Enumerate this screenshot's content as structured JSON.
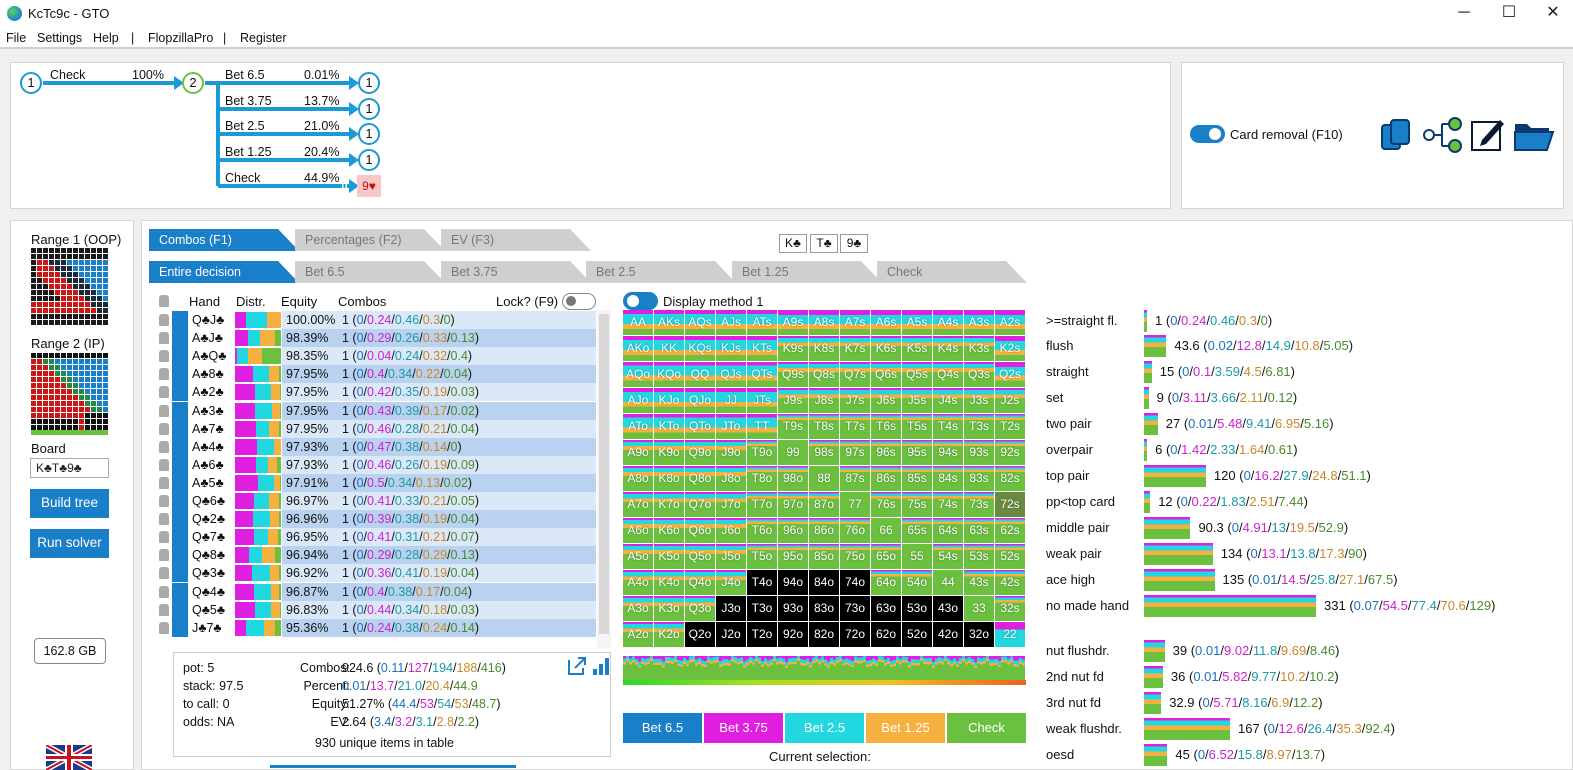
{
  "window": {
    "title": "KcTc9c - GTO",
    "minimize": "─",
    "maximize": "☐",
    "close": "✕"
  },
  "menu": [
    "File",
    "Settings",
    "Help",
    "|",
    "FlopzillaPro",
    "|",
    "Register"
  ],
  "tree": {
    "root_node": "1",
    "root_action": "Check",
    "root_pct": "100%",
    "mid_node": "2",
    "branches": [
      {
        "label": "Bet 6.5",
        "pct": "0.01%",
        "node": "1"
      },
      {
        "label": "Bet 3.75",
        "pct": "13.7%",
        "node": "1"
      },
      {
        "label": "Bet 2.5",
        "pct": "21.0%",
        "node": "1"
      },
      {
        "label": "Bet 1.25",
        "pct": "20.4%",
        "node": "1"
      },
      {
        "label": "Check",
        "pct": "44.9%",
        "node": "9♥"
      }
    ]
  },
  "options": {
    "card_removal": "Card removal (F10)"
  },
  "left": {
    "range1": "Range 1 (OOP)",
    "range2": "Range 2 (IP)",
    "board_label": "Board",
    "board_value": "K♣T♣9♣",
    "build_tree": "Build tree",
    "run_solver": "Run solver",
    "memory": "162.8 GB"
  },
  "tabs1": [
    "Combos (F1)",
    "Percentages (F2)",
    "EV (F3)"
  ],
  "board_cards": [
    "K♣",
    "T♣",
    "9♣"
  ],
  "tabs2": [
    "Entire decision",
    "Bet 6.5",
    "Bet 3.75",
    "Bet 2.5",
    "Bet 1.25",
    "Check"
  ],
  "table": {
    "headers": {
      "hand": "Hand",
      "distr": "Distr.",
      "equity": "Equity",
      "combos": "Combos",
      "lock": "Lock? (F9)"
    },
    "rows": [
      {
        "hand": "Q♣J♣",
        "eq": "100.00%",
        "c": "1",
        "a": "0",
        "b": "0.24",
        "d": "0.46",
        "e": "0.3",
        "f": "0"
      },
      {
        "hand": "A♣J♣",
        "eq": "98.39%",
        "c": "1",
        "a": "0",
        "b": "0.29",
        "d": "0.26",
        "e": "0.33",
        "f": "0.13"
      },
      {
        "hand": "A♣Q♣",
        "eq": "98.35%",
        "c": "1",
        "a": "0",
        "b": "0.04",
        "d": "0.24",
        "e": "0.32",
        "f": "0.4"
      },
      {
        "hand": "A♣8♣",
        "eq": "97.95%",
        "c": "1",
        "a": "0",
        "b": "0.4",
        "d": "0.34",
        "e": "0.22",
        "f": "0.04"
      },
      {
        "hand": "A♣2♣",
        "eq": "97.95%",
        "c": "1",
        "a": "0",
        "b": "0.42",
        "d": "0.35",
        "e": "0.19",
        "f": "0.03"
      },
      {
        "hand": "A♣3♣",
        "eq": "97.95%",
        "c": "1",
        "a": "0",
        "b": "0.43",
        "d": "0.39",
        "e": "0.17",
        "f": "0.02"
      },
      {
        "hand": "A♣7♣",
        "eq": "97.95%",
        "c": "1",
        "a": "0",
        "b": "0.46",
        "d": "0.28",
        "e": "0.21",
        "f": "0.04"
      },
      {
        "hand": "A♣4♣",
        "eq": "97.93%",
        "c": "1",
        "a": "0",
        "b": "0.47",
        "d": "0.38",
        "e": "0.14",
        "f": "0"
      },
      {
        "hand": "A♣6♣",
        "eq": "97.93%",
        "c": "1",
        "a": "0",
        "b": "0.46",
        "d": "0.26",
        "e": "0.19",
        "f": "0.09"
      },
      {
        "hand": "A♣5♣",
        "eq": "97.91%",
        "c": "1",
        "a": "0",
        "b": "0.5",
        "d": "0.34",
        "e": "0.13",
        "f": "0.02"
      },
      {
        "hand": "Q♣6♣",
        "eq": "96.97%",
        "c": "1",
        "a": "0",
        "b": "0.41",
        "d": "0.33",
        "e": "0.21",
        "f": "0.05"
      },
      {
        "hand": "Q♣2♣",
        "eq": "96.96%",
        "c": "1",
        "a": "0",
        "b": "0.39",
        "d": "0.38",
        "e": "0.19",
        "f": "0.04"
      },
      {
        "hand": "Q♣7♣",
        "eq": "96.95%",
        "c": "1",
        "a": "0",
        "b": "0.41",
        "d": "0.31",
        "e": "0.21",
        "f": "0.07"
      },
      {
        "hand": "Q♣8♣",
        "eq": "96.94%",
        "c": "1",
        "a": "0",
        "b": "0.29",
        "d": "0.28",
        "e": "0.29",
        "f": "0.13"
      },
      {
        "hand": "Q♣3♣",
        "eq": "96.92%",
        "c": "1",
        "a": "0",
        "b": "0.36",
        "d": "0.41",
        "e": "0.19",
        "f": "0.04"
      },
      {
        "hand": "Q♣4♣",
        "eq": "96.87%",
        "c": "1",
        "a": "0",
        "b": "0.4",
        "d": "0.38",
        "e": "0.17",
        "f": "0.04"
      },
      {
        "hand": "Q♣5♣",
        "eq": "96.83%",
        "c": "1",
        "a": "0",
        "b": "0.44",
        "d": "0.34",
        "e": "0.18",
        "f": "0.03"
      },
      {
        "hand": "J♣7♣",
        "eq": "95.36%",
        "c": "1",
        "a": "0",
        "b": "0.24",
        "d": "0.38",
        "e": "0.24",
        "f": "0.14"
      }
    ]
  },
  "summary": {
    "pot": "pot: 5",
    "stack": "stack: 97.5",
    "tocall": "to call: 0",
    "odds": "odds: NA",
    "combos_label": "Combos:",
    "combos": [
      "924.6",
      "0.11",
      "127",
      "194",
      "188",
      "416"
    ],
    "percent_label": "Percent:",
    "percent": [
      "0.01",
      "13.7",
      "21.0",
      "20.4",
      "44.9"
    ],
    "equity_label": "Equity:",
    "equity": [
      "51.27%",
      "44.4",
      "53",
      "54",
      "53",
      "48.7"
    ],
    "ev_label": "EV:",
    "ev": [
      "2.64",
      "3.4",
      "3.2",
      "3.1",
      "2.8",
      "2.2"
    ],
    "unique": "930 unique items in table"
  },
  "display_method": "Display method 1",
  "grid_rows": [
    [
      "AA",
      "AKs",
      "AQs",
      "AJs",
      "ATs",
      "A9s",
      "A8s",
      "A7s",
      "A6s",
      "A5s",
      "A4s",
      "A3s",
      "A2s"
    ],
    [
      "AKo",
      "KK",
      "KQs",
      "KJs",
      "KTs",
      "K9s",
      "K8s",
      "K7s",
      "K6s",
      "K5s",
      "K4s",
      "K3s",
      "K2s"
    ],
    [
      "AQo",
      "KQo",
      "QQ",
      "QJs",
      "QTs",
      "Q9s",
      "Q8s",
      "Q7s",
      "Q6s",
      "Q5s",
      "Q4s",
      "Q3s",
      "Q2s"
    ],
    [
      "AJo",
      "KJo",
      "QJo",
      "JJ",
      "JTs",
      "J9s",
      "J8s",
      "J7s",
      "J6s",
      "J5s",
      "J4s",
      "J3s",
      "J2s"
    ],
    [
      "ATo",
      "KTo",
      "QTo",
      "JTo",
      "TT",
      "T9s",
      "T8s",
      "T7s",
      "T6s",
      "T5s",
      "T4s",
      "T3s",
      "T2s"
    ],
    [
      "A9o",
      "K9o",
      "Q9o",
      "J9o",
      "T9o",
      "99",
      "98s",
      "97s",
      "96s",
      "95s",
      "94s",
      "93s",
      "92s"
    ],
    [
      "A8o",
      "K8o",
      "Q8o",
      "J8o",
      "T8o",
      "98o",
      "88",
      "87s",
      "86s",
      "85s",
      "84s",
      "83s",
      "82s"
    ],
    [
      "A7o",
      "K7o",
      "Q7o",
      "J7o",
      "T7o",
      "97o",
      "87o",
      "77",
      "76s",
      "75s",
      "74s",
      "73s",
      "72s"
    ],
    [
      "A6o",
      "K6o",
      "Q6o",
      "J6o",
      "T6o",
      "96o",
      "86o",
      "76o",
      "66",
      "65s",
      "64s",
      "63s",
      "62s"
    ],
    [
      "A5o",
      "K5o",
      "Q5o",
      "J5o",
      "T5o",
      "95o",
      "85o",
      "75o",
      "65o",
      "55",
      "54s",
      "53s",
      "52s"
    ],
    [
      "A4o",
      "K4o",
      "Q4o",
      "J4o",
      "T4o",
      "94o",
      "84o",
      "74o",
      "64o",
      "54o",
      "44",
      "43s",
      "42s"
    ],
    [
      "A3o",
      "K3o",
      "Q3o",
      "J3o",
      "T3o",
      "93o",
      "83o",
      "73o",
      "63o",
      "53o",
      "43o",
      "33",
      "32s"
    ],
    [
      "A2o",
      "K2o",
      "Q2o",
      "J2o",
      "T2o",
      "92o",
      "82o",
      "72o",
      "62o",
      "52o",
      "42o",
      "32o",
      "22"
    ]
  ],
  "legend": [
    {
      "label": "Bet 6.5",
      "color": "#1a7fc9"
    },
    {
      "label": "Bet 3.75",
      "color": "#e020e0"
    },
    {
      "label": "Bet 2.5",
      "color": "#22d8e0"
    },
    {
      "label": "Bet 1.25",
      "color": "#f5b040"
    },
    {
      "label": "Check",
      "color": "#6cc040"
    }
  ],
  "current_selection": "Current selection:",
  "categories": [
    {
      "label": ">=straight fl.",
      "total": "1",
      "v": [
        "0",
        "0.24",
        "0.46",
        "0.3",
        "0"
      ],
      "fill": 0.005
    },
    {
      "label": "flush",
      "total": "43.6",
      "v": [
        "0.02",
        "12.8",
        "14.9",
        "10.8",
        "5.05"
      ],
      "fill": 0.13
    },
    {
      "label": "straight",
      "total": "15",
      "v": [
        "0",
        "0.1",
        "3.59",
        "4.5",
        "6.81"
      ],
      "fill": 0.045
    },
    {
      "label": "set",
      "total": "9",
      "v": [
        "0",
        "3.11",
        "3.66",
        "2.11",
        "0.12"
      ],
      "fill": 0.027
    },
    {
      "label": "two pair",
      "total": "27",
      "v": [
        "0.01",
        "5.48",
        "9.41",
        "6.95",
        "5.16"
      ],
      "fill": 0.08
    },
    {
      "label": "overpair",
      "total": "6",
      "v": [
        "0",
        "1.42",
        "2.33",
        "1.64",
        "0.61"
      ],
      "fill": 0.018
    },
    {
      "label": "top pair",
      "total": "120",
      "v": [
        "0",
        "16.2",
        "27.9",
        "24.8",
        "51.1"
      ],
      "fill": 0.36
    },
    {
      "label": "pp<top card",
      "total": "12",
      "v": [
        "0",
        "0.22",
        "1.83",
        "2.51",
        "7.44"
      ],
      "fill": 0.036
    },
    {
      "label": "middle pair",
      "total": "90.3",
      "v": [
        "0",
        "4.91",
        "13",
        "19.5",
        "52.9"
      ],
      "fill": 0.27
    },
    {
      "label": "weak pair",
      "total": "134",
      "v": [
        "0",
        "13.1",
        "13.8",
        "17.3",
        "90"
      ],
      "fill": 0.4
    },
    {
      "label": "ace high",
      "total": "135",
      "v": [
        "0.01",
        "14.5",
        "25.8",
        "27.1",
        "67.5"
      ],
      "fill": 0.41
    },
    {
      "label": "no made hand",
      "total": "331",
      "v": [
        "0.07",
        "54.5",
        "77.4",
        "70.6",
        "129"
      ],
      "fill": 1.0
    },
    {
      "label": "nut flushdr.",
      "total": "39",
      "v": [
        "0.01",
        "9.02",
        "11.8",
        "9.69",
        "8.46"
      ],
      "fill": 0.12
    },
    {
      "label": "2nd nut fd",
      "total": "36",
      "v": [
        "0.01",
        "5.82",
        "9.77",
        "10.2",
        "10.2"
      ],
      "fill": 0.11
    },
    {
      "label": "3rd nut fd",
      "total": "32.9",
      "v": [
        "0",
        "5.71",
        "8.16",
        "6.9",
        "12.2"
      ],
      "fill": 0.1
    },
    {
      "label": "weak flushdr.",
      "total": "167",
      "v": [
        "0",
        "12.6",
        "26.4",
        "35.3",
        "92.4"
      ],
      "fill": 0.5
    },
    {
      "label": "oesd",
      "total": "45",
      "v": [
        "0",
        "6.52",
        "15.8",
        "8.97",
        "13.7"
      ],
      "fill": 0.136
    }
  ]
}
